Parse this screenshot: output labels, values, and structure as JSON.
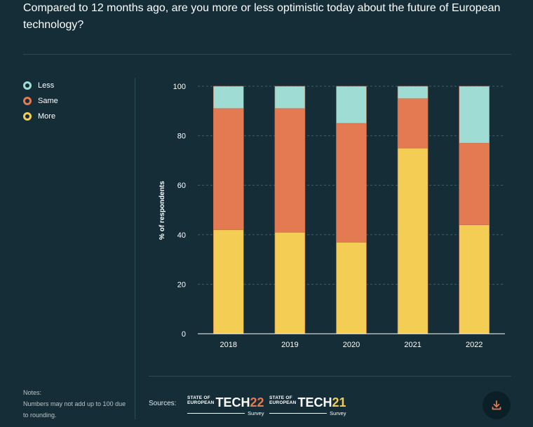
{
  "question": "Compared to 12 months ago, are you more or less optimistic today about the future of European technology?",
  "legend": [
    {
      "label": "Less",
      "color": "#9fdcd4"
    },
    {
      "label": "Same",
      "color": "#e47a52"
    },
    {
      "label": "More",
      "color": "#f4cd55"
    }
  ],
  "chart_data": {
    "type": "bar",
    "stacked": true,
    "categories": [
      "2018",
      "2019",
      "2020",
      "2021",
      "2022"
    ],
    "series": [
      {
        "name": "More",
        "color": "#f4cd55",
        "values": [
          42,
          41,
          37,
          75,
          44
        ]
      },
      {
        "name": "Same",
        "color": "#e47a52",
        "values": [
          49,
          50,
          48,
          20,
          33
        ]
      },
      {
        "name": "Less",
        "color": "#9fdcd4",
        "values": [
          9,
          9,
          15,
          5,
          23
        ]
      }
    ],
    "ylabel": "% of respondents",
    "ylim": [
      0,
      100
    ],
    "yticks": [
      0,
      20,
      40,
      60,
      80,
      100
    ],
    "grid": true,
    "legend_position": "left"
  },
  "notes": {
    "title": "Notes:",
    "text": "Numbers may not add up to 100 due to rounding."
  },
  "sources": {
    "label": "Sources:",
    "logos": [
      {
        "line1": "STATE OF",
        "line2": "EUROPEAN",
        "word": "TECH",
        "year": "22",
        "year_color": "#e47a52",
        "sub": "Survey"
      },
      {
        "line1": "STATE OF",
        "line2": "EUROPEAN",
        "word": "TECH",
        "year": "21",
        "year_color": "#f4cd55",
        "sub": "Survey"
      }
    ]
  },
  "download": {
    "icon": "download-icon",
    "color": "#e47a52"
  }
}
